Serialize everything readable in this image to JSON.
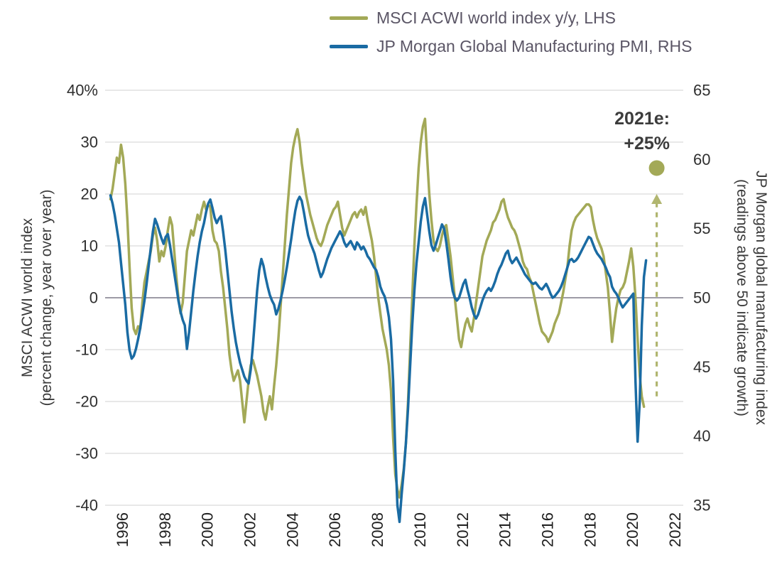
{
  "colors": {
    "background": "#ffffff",
    "grid": "#d9d9d9",
    "zero_line": "#8f8d9a",
    "axis_tick_text": "#2f2f2f",
    "x_tick_text": "#1f1f1f",
    "legend_text": "#5b5666",
    "annotation_text": "#3c3c3c",
    "olive": "#a3a957",
    "blue": "#1a6ba3"
  },
  "legend": {
    "items": [
      {
        "id": "msci",
        "label": "MSCI ACWI world index y/y, LHS",
        "color": "#a3a957"
      },
      {
        "id": "pmi",
        "label": "JP Morgan Global Manufacturing PMI, RHS",
        "color": "#1a6ba3"
      }
    ]
  },
  "left_axis": {
    "title_line1": "MSCI ACWI world index",
    "title_line2": "(percent change, year over year)",
    "tick_labels": [
      "40%",
      "30",
      "20",
      "10",
      "0",
      "-10",
      "-20",
      "-30",
      "-40"
    ],
    "tick_values": [
      40,
      30,
      20,
      10,
      0,
      -10,
      -20,
      -30,
      -40
    ]
  },
  "right_axis": {
    "title_line1": "JP Morgan global manufacturing index",
    "title_line2": "(readings above 50 indicate growth)",
    "tick_labels": [
      "65",
      "60",
      "55",
      "50",
      "45",
      "40",
      "35"
    ],
    "tick_values": [
      65,
      60,
      55,
      50,
      45,
      40,
      35
    ]
  },
  "x_axis": {
    "tick_labels": [
      "1996",
      "1998",
      "2000",
      "2002",
      "2004",
      "2006",
      "2008",
      "2010",
      "2012",
      "2014",
      "2016",
      "2018",
      "2020",
      "2022"
    ],
    "tick_values": [
      1996,
      1998,
      2000,
      2002,
      2004,
      2006,
      2008,
      2010,
      2012,
      2014,
      2016,
      2018,
      2020,
      2022
    ]
  },
  "annotation": {
    "line1": "2021e:",
    "line2": "+25%",
    "x_year": 2021.15,
    "dot_value_lhs": 25,
    "arrow_from_lhs": -19,
    "arrow_to_lhs": 20,
    "color": "#a3a957"
  },
  "chart_data": {
    "type": "line",
    "x_unit": "year (decimal)",
    "x_range": [
      1995.2,
      2022.4
    ],
    "lhs_range": [
      -40,
      40
    ],
    "rhs_range": [
      35,
      65
    ],
    "grid": true,
    "legend_position": "top",
    "series": [
      {
        "id": "msci",
        "name": "MSCI ACWI world index y/y, LHS",
        "axis": "lhs",
        "color": "#a3a957",
        "x_start": 1995.45,
        "x_step": 0.1,
        "values": [
          19,
          21,
          24,
          27,
          26,
          29.5,
          27,
          22,
          15,
          6,
          -2,
          -6,
          -7,
          -5.5,
          -6,
          -1,
          3,
          5,
          7,
          9,
          12,
          13.5,
          11,
          7,
          9,
          8,
          10,
          13,
          15.5,
          14,
          9,
          4,
          0,
          -3,
          -1,
          4,
          9,
          11,
          13,
          12,
          14,
          16,
          15,
          17,
          18.5,
          17,
          18,
          17.5,
          13,
          11,
          10.5,
          9,
          5,
          2,
          -2,
          -6,
          -11,
          -14,
          -16,
          -15,
          -14,
          -16,
          -20,
          -24,
          -20,
          -16,
          -13,
          -12,
          -13.5,
          -15,
          -17,
          -19,
          -22,
          -23.5,
          -21,
          -19,
          -21.5,
          -17,
          -13,
          -8,
          -2,
          4,
          10,
          16,
          21,
          26,
          29,
          31,
          32.5,
          30,
          26,
          23,
          20,
          18,
          16,
          14.5,
          13,
          11.5,
          10.5,
          10,
          11,
          12.5,
          14,
          15,
          16,
          17,
          17.5,
          18.5,
          16,
          13.5,
          12,
          13,
          14,
          15,
          16,
          16.5,
          15.5,
          16.5,
          17,
          16,
          17.5,
          15,
          13,
          11,
          8,
          4,
          0,
          -3,
          -6,
          -8,
          -10,
          -13,
          -18,
          -27,
          -34,
          -37,
          -38.5,
          -36,
          -33,
          -28,
          -20,
          -10,
          0,
          10,
          18,
          25,
          30,
          33,
          34.5,
          27,
          20,
          15,
          11,
          9.5,
          9,
          10,
          12,
          13.5,
          14,
          11,
          8,
          4,
          0,
          -4,
          -8,
          -9.5,
          -7,
          -5,
          -4,
          -5.5,
          -6.5,
          -4,
          -1,
          2,
          5,
          8,
          9.5,
          11,
          12,
          13,
          14.5,
          15,
          16,
          17,
          18.5,
          19,
          17,
          15.5,
          14.5,
          13.5,
          13,
          12,
          10.5,
          9,
          7,
          6,
          5.5,
          4,
          3,
          1,
          -1,
          -3,
          -5,
          -6.5,
          -7,
          -7.5,
          -8.5,
          -7.5,
          -6.5,
          -5,
          -4,
          -3,
          -1,
          1,
          3.5,
          6,
          10,
          13,
          14.5,
          15.5,
          16,
          16.5,
          17,
          17.5,
          18,
          18,
          17.5,
          15,
          13,
          11.5,
          10.5,
          9.5,
          8,
          5,
          2,
          -3,
          -8.5,
          -5,
          -2,
          0,
          1.5,
          2,
          3,
          5,
          7,
          9.5,
          6,
          0,
          -8,
          -15,
          -19,
          -21
        ]
      },
      {
        "id": "pmi",
        "name": "JP Morgan Global Manufacturing PMI, RHS",
        "axis": "rhs",
        "color": "#1a6ba3",
        "x_start": 1995.45,
        "x_step": 0.1,
        "values": [
          57.4,
          56.8,
          56,
          55,
          54,
          52.5,
          51,
          49.5,
          47.5,
          46.2,
          45.6,
          45.8,
          46.3,
          47,
          47.8,
          48.8,
          49.8,
          51,
          52.3,
          53.6,
          54.8,
          55.7,
          55.3,
          54.8,
          54.3,
          53.9,
          54.4,
          54.6,
          53.8,
          52.8,
          51.8,
          50.8,
          49.8,
          49,
          48.4,
          48,
          46.3,
          47.5,
          49,
          50.5,
          51.8,
          53,
          54,
          54.8,
          55.4,
          56.2,
          56.8,
          57.1,
          56.5,
          55.8,
          55.4,
          55.7,
          55.9,
          54.8,
          53.5,
          52,
          50.5,
          49,
          47.8,
          46.8,
          46,
          45.3,
          44.8,
          44.3,
          44,
          43.8,
          44.8,
          46.5,
          48.5,
          50.5,
          52,
          52.8,
          52.3,
          51.5,
          50.8,
          50.2,
          49.8,
          49.5,
          48.8,
          49.2,
          49.8,
          50.5,
          51.3,
          52.2,
          53.2,
          54.2,
          55.3,
          56.3,
          57,
          57.3,
          57,
          56.2,
          55.3,
          54.5,
          54,
          53.6,
          53.2,
          52.6,
          52,
          51.5,
          51.8,
          52.3,
          52.8,
          53.2,
          53.6,
          53.9,
          54.2,
          54.5,
          54.8,
          54.5,
          54,
          53.7,
          53.9,
          54.1,
          53.8,
          53.5,
          54,
          53.8,
          53.5,
          53.7,
          53.4,
          53,
          52.8,
          52.5,
          52.2,
          52,
          51.5,
          50.8,
          50.4,
          50.1,
          49.5,
          48.6,
          47,
          44,
          39,
          35,
          33.8,
          35.8,
          37.5,
          39.5,
          42,
          45,
          48,
          50.5,
          52.5,
          54,
          55.5,
          56.6,
          57.2,
          56,
          54.8,
          53.8,
          53.4,
          53.8,
          54.3,
          54.8,
          55.3,
          55,
          54,
          52.8,
          51.5,
          50.5,
          50,
          49.8,
          50,
          50.5,
          51,
          51.3,
          50.6,
          50,
          49.3,
          48.8,
          48.5,
          48.8,
          49.3,
          49.8,
          50.2,
          50.5,
          50.7,
          50.5,
          50.8,
          51.2,
          51.7,
          52.1,
          52.4,
          52.8,
          53.2,
          53.4,
          52.8,
          52.5,
          52.7,
          52.9,
          52.6,
          52.3,
          52,
          51.7,
          51.5,
          51.3,
          51.1,
          51,
          51.1,
          50.9,
          50.7,
          50.6,
          50.8,
          51,
          50.7,
          50.3,
          50,
          50.1,
          50.3,
          50.5,
          50.8,
          51.2,
          51.7,
          52.2,
          52.7,
          52.8,
          52.6,
          52.7,
          52.9,
          53.2,
          53.5,
          53.8,
          54.1,
          54.4,
          54.3,
          53.9,
          53.5,
          53.2,
          53,
          52.8,
          52.5,
          52.2,
          51.8,
          51.5,
          50.8,
          50.5,
          50.3,
          50,
          49.6,
          49.3,
          49.5,
          49.7,
          49.9,
          50.1,
          50.3,
          44,
          39.6,
          42.5,
          48,
          51.5,
          52.7
        ]
      }
    ],
    "estimate_point": {
      "label": "2021e: +25%",
      "year": 2021,
      "value_lhs_percent": 25
    }
  }
}
